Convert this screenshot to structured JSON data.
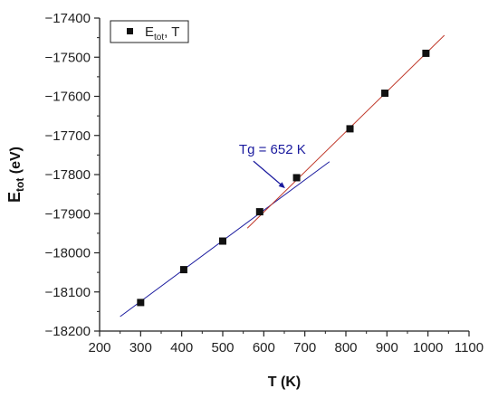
{
  "chart_data": {
    "type": "scatter",
    "xlabel": "T (K)",
    "ylabel_main": "E",
    "ylabel_sub": "tot",
    "ylabel_rest": " (eV)",
    "xlim": [
      200,
      1100
    ],
    "ylim": [
      -18200,
      -17400
    ],
    "xticks": [
      200,
      300,
      400,
      500,
      600,
      700,
      800,
      900,
      1000,
      1100
    ],
    "yticks": [
      -17400,
      -17500,
      -17600,
      -17700,
      -17800,
      -17900,
      -18000,
      -18100,
      -18200
    ],
    "x": [
      300,
      405,
      500,
      590,
      680,
      810,
      895,
      995
    ],
    "y": [
      -18127,
      -18043,
      -17970,
      -17895,
      -17808,
      -17683,
      -17592,
      -17490
    ],
    "legend": {
      "placement": "top-left",
      "label_main": "E",
      "label_sub": "tot",
      "label_rest": ", T"
    },
    "fit_lines": [
      {
        "color": "#1a1a9e",
        "x": [
          250,
          760
        ],
        "y": [
          -18163,
          -17767
        ]
      },
      {
        "color": "#c0392b",
        "x": [
          560,
          1040
        ],
        "y": [
          -17937,
          -17444
        ]
      }
    ],
    "annotation": {
      "text": "Tg = 652 K",
      "arrow_to_x": 652,
      "arrow_to_y": -17835
    },
    "colors": {
      "marker": "#111111",
      "axis": "#222222"
    }
  }
}
